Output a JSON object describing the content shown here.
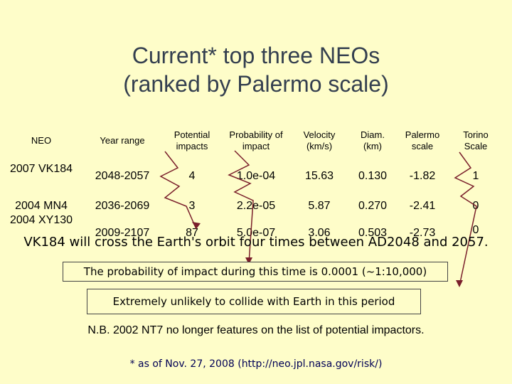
{
  "slide": {
    "title_line1": "Current* top three  NEOs",
    "title_line2": "(ranked by Palermo scale)"
  },
  "table": {
    "headers": {
      "neo": "NEO",
      "year_range": "Year range",
      "potential_impacts": "Potential impacts",
      "probability": "Probability of impact",
      "velocity": "Velocity (km/s)",
      "diam": "Diam. (km)",
      "palermo": "Palermo scale",
      "torino": "Torino Scale"
    },
    "rows": [
      {
        "neo": "2007 VK184",
        "year_range": "2048-2057",
        "potential_impacts": "4",
        "probability": "1.0e-04",
        "velocity": "15.63",
        "diam": "0.130",
        "palermo": "-1.82",
        "torino": "1"
      },
      {
        "neo": "2004 MN4",
        "year_range": "2036-2069",
        "potential_impacts": "3",
        "probability": "2.2e-05",
        "velocity": "5.87",
        "diam": "0.270",
        "palermo": "-2.41",
        "torino": "0"
      },
      {
        "neo": "2004 XY130",
        "year_range": "2009-2107",
        "potential_impacts": "87",
        "probability": "5.0e-07",
        "velocity": "3.06",
        "diam": "0.503",
        "palermo": "-2.73",
        "torino": "0"
      }
    ]
  },
  "annotations": {
    "orbit_text": "VK184 will cross the Earth's orbit four times between AD2048 and 2057.",
    "probability_box": "The probability of impact during this time is 0.0001 (~1:10,000)",
    "torino_box": "Extremely unlikely to collide with Earth in this period"
  },
  "note": "N.B. 2002 NT7 no longer features on the list of potential impactors.",
  "source": "* as of Nov. 27, 2008  (http://neo.jpl.nasa.gov/risk/)",
  "colors": {
    "background": "#fefdc9",
    "title": "#343f4f",
    "box_border": "#444444",
    "arrow": "#7a1f2b"
  }
}
